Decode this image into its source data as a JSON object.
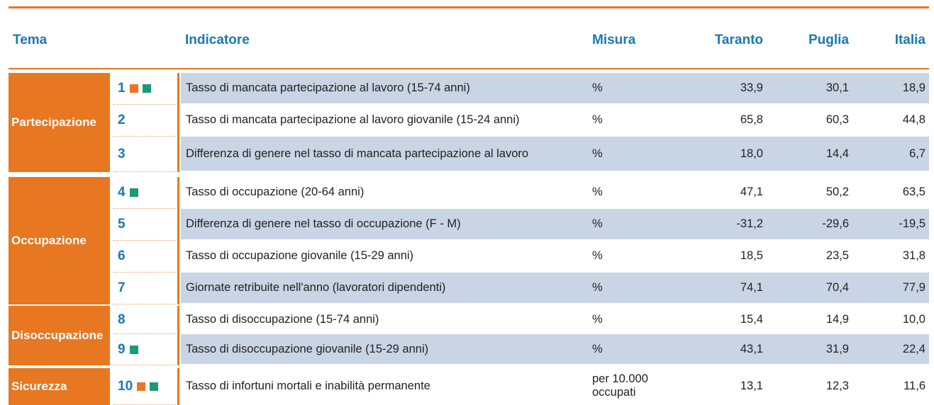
{
  "header": {
    "tema": "Tema",
    "indicatore": "Indicatore",
    "misura": "Misura",
    "taranto": "Taranto",
    "puglia": "Puglia",
    "italia": "Italia"
  },
  "groups": [
    {
      "tema": "Partecipazione",
      "rows": [
        {
          "num": "1",
          "icons": [
            "#e87722",
            "#1a9a78"
          ],
          "indicatore": "Tasso di mancata partecipazione al lavoro (15-74 anni)",
          "misura": "%",
          "taranto": "33,9",
          "puglia": "30,1",
          "italia": "18,9"
        },
        {
          "num": "2",
          "icons": [],
          "indicatore": "Tasso di mancata partecipazione al lavoro giovanile (15-24 anni)",
          "misura": "%",
          "taranto": "65,8",
          "puglia": "60,3",
          "italia": "44,8"
        },
        {
          "num": "3",
          "icons": [],
          "indicatore": "Differenza di genere nel tasso di mancata partecipazione al lavoro",
          "misura": "%",
          "taranto": "18,0",
          "puglia": "14,4",
          "italia": "6,7"
        }
      ]
    },
    {
      "tema": "Occupazione",
      "rows": [
        {
          "num": "4",
          "icons": [
            "#1a9a78"
          ],
          "indicatore": "Tasso di occupazione (20-64 anni)",
          "misura": "%",
          "taranto": "47,1",
          "puglia": "50,2",
          "italia": "63,5"
        },
        {
          "num": "5",
          "icons": [],
          "indicatore": "Differenza di genere nel tasso di occupazione (F - M)",
          "misura": "%",
          "taranto": "-31,2",
          "puglia": "-29,6",
          "italia": "-19,5"
        },
        {
          "num": "6",
          "icons": [],
          "indicatore": "Tasso di occupazione giovanile (15-29 anni)",
          "misura": "%",
          "taranto": "18,5",
          "puglia": "23,5",
          "italia": "31,8"
        },
        {
          "num": "7",
          "icons": [],
          "indicatore": "Giornate retribuite nell'anno (lavoratori dipendenti)",
          "misura": "%",
          "taranto": "74,1",
          "puglia": "70,4",
          "italia": "77,9"
        }
      ]
    },
    {
      "tema": "Disoccupazione",
      "rows": [
        {
          "num": "8",
          "icons": [],
          "indicatore": "Tasso di disoccupazione (15-74 anni)",
          "misura": "%",
          "taranto": "15,4",
          "puglia": "14,9",
          "italia": "10,0"
        },
        {
          "num": "9",
          "icons": [
            "#1a9a78"
          ],
          "indicatore": "Tasso di disoccupazione giovanile (15-29 anni)",
          "misura": "%",
          "taranto": "43,1",
          "puglia": "31,9",
          "italia": "22,4"
        }
      ]
    },
    {
      "tema": "Sicurezza",
      "rows": [
        {
          "num": "10",
          "icons": [
            "#e87722",
            "#1a9a78"
          ],
          "indicatore": "Tasso di infortuni mortali e inabilità permanente",
          "misura": "per 10.000 occupati",
          "taranto": "13,1",
          "puglia": "12,3",
          "italia": "11,6"
        }
      ]
    }
  ]
}
